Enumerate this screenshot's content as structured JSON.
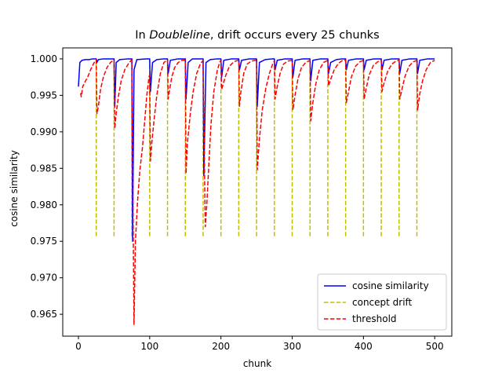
{
  "chart_data": {
    "type": "line",
    "title_prefix": "In ",
    "title_italic": "Doubleline",
    "title_suffix": ", drift occurs every 25 chunks",
    "xlabel": "chunk",
    "ylabel": "cosine similarity",
    "xlim": [
      -22,
      524
    ],
    "ylim": [
      0.962,
      1.0015
    ],
    "xticks": [
      0,
      100,
      200,
      300,
      400,
      500
    ],
    "yticks": [
      0.965,
      0.97,
      0.975,
      0.98,
      0.985,
      0.99,
      0.995,
      1.0
    ],
    "ytick_labels": [
      "0.965",
      "0.970",
      "0.975",
      "0.980",
      "0.985",
      "0.990",
      "0.995",
      "1.000"
    ],
    "grid": false,
    "legend_position": "lower right",
    "legend": [
      {
        "label": "cosine similarity",
        "color": "#0000ff",
        "style": "solid"
      },
      {
        "label": "concept drift",
        "color": "#bfbf00",
        "style": "dashed"
      },
      {
        "label": "threshold",
        "color": "#ff0000",
        "style": "dashed"
      }
    ],
    "drift_points": [
      25,
      50,
      75,
      100,
      125,
      150,
      175,
      200,
      225,
      250,
      275,
      300,
      325,
      350,
      375,
      400,
      425,
      450,
      475
    ],
    "drift_line_range": [
      0.9757,
      1.0
    ],
    "series": [
      {
        "name": "cosine similarity",
        "color": "#0000ff",
        "points": [
          [
            0,
            0.9962
          ],
          [
            2,
            0.9995
          ],
          [
            5,
            0.9998
          ],
          [
            10,
            0.9999
          ],
          [
            15,
            0.9999
          ],
          [
            20,
            1.0
          ],
          [
            25,
            1.0
          ],
          [
            26,
            0.9995
          ],
          [
            28,
            0.9999
          ],
          [
            35,
            1.0
          ],
          [
            45,
            1.0
          ],
          [
            50,
            1.0
          ],
          [
            51,
            0.9935
          ],
          [
            53,
            0.9995
          ],
          [
            58,
            0.9999
          ],
          [
            70,
            1.0
          ],
          [
            75,
            1.0
          ],
          [
            76,
            0.975
          ],
          [
            78,
            0.9985
          ],
          [
            82,
            0.9999
          ],
          [
            95,
            1.0
          ],
          [
            100,
            1.0
          ],
          [
            101,
            0.9955
          ],
          [
            104,
            0.9995
          ],
          [
            110,
            0.9999
          ],
          [
            120,
            1.0
          ],
          [
            125,
            1.0
          ],
          [
            126,
            0.998
          ],
          [
            129,
            0.9998
          ],
          [
            140,
            1.0
          ],
          [
            150,
            1.0
          ],
          [
            151,
            0.9945
          ],
          [
            154,
            0.9995
          ],
          [
            160,
            1.0
          ],
          [
            175,
            1.0
          ],
          [
            176,
            0.984
          ],
          [
            179,
            0.9995
          ],
          [
            185,
            0.9999
          ],
          [
            195,
            1.0
          ],
          [
            200,
            1.0
          ],
          [
            201,
            0.9975
          ],
          [
            204,
            0.9998
          ],
          [
            215,
            1.0
          ],
          [
            225,
            1.0
          ],
          [
            226,
            0.9985
          ],
          [
            229,
            0.9998
          ],
          [
            240,
            1.0
          ],
          [
            250,
            1.0
          ],
          [
            251,
            0.9935
          ],
          [
            254,
            0.9995
          ],
          [
            262,
            0.9999
          ],
          [
            272,
            1.0
          ],
          [
            275,
            1.0
          ],
          [
            276,
            0.9985
          ],
          [
            279,
            0.9998
          ],
          [
            290,
            1.0
          ],
          [
            300,
            1.0
          ],
          [
            301,
            0.9975
          ],
          [
            304,
            0.9998
          ],
          [
            315,
            1.0
          ],
          [
            325,
            1.0
          ],
          [
            326,
            0.997
          ],
          [
            329,
            0.9998
          ],
          [
            340,
            1.0
          ],
          [
            350,
            1.0
          ],
          [
            351,
            0.998
          ],
          [
            354,
            0.9995
          ],
          [
            362,
            0.9999
          ],
          [
            370,
            1.0
          ],
          [
            375,
            1.0
          ],
          [
            376,
            0.9985
          ],
          [
            379,
            0.9998
          ],
          [
            390,
            1.0
          ],
          [
            400,
            1.0
          ],
          [
            401,
            0.9985
          ],
          [
            404,
            0.9998
          ],
          [
            415,
            1.0
          ],
          [
            425,
            1.0
          ],
          [
            426,
            0.9985
          ],
          [
            429,
            0.9998
          ],
          [
            440,
            1.0
          ],
          [
            450,
            1.0
          ],
          [
            451,
            0.998
          ],
          [
            454,
            0.9998
          ],
          [
            465,
            1.0
          ],
          [
            475,
            1.0
          ],
          [
            476,
            0.998
          ],
          [
            479,
            0.9998
          ],
          [
            490,
            1.0
          ],
          [
            500,
            1.0
          ]
        ]
      },
      {
        "name": "threshold",
        "color": "#ff0000",
        "points": [
          [
            3,
            0.9953
          ],
          [
            4,
            0.9948
          ],
          [
            6,
            0.9962
          ],
          [
            9,
            0.9968
          ],
          [
            13,
            0.9975
          ],
          [
            17,
            0.9985
          ],
          [
            21,
            0.9993
          ],
          [
            24,
            0.9998
          ],
          [
            25,
            0.9998
          ],
          [
            26,
            0.9925
          ],
          [
            28,
            0.9935
          ],
          [
            31,
            0.9958
          ],
          [
            35,
            0.9975
          ],
          [
            40,
            0.9988
          ],
          [
            45,
            0.9995
          ],
          [
            49,
            0.9998
          ],
          [
            50,
            0.9998
          ],
          [
            51,
            0.9905
          ],
          [
            53,
            0.9925
          ],
          [
            56,
            0.9948
          ],
          [
            60,
            0.997
          ],
          [
            65,
            0.9985
          ],
          [
            70,
            0.9993
          ],
          [
            74,
            0.9998
          ],
          [
            75,
            0.9998
          ],
          [
            78,
            0.9636
          ],
          [
            80,
            0.975
          ],
          [
            83,
            0.9805
          ],
          [
            86,
            0.9845
          ],
          [
            90,
            0.988
          ],
          [
            93,
            0.9915
          ],
          [
            96,
            0.995
          ],
          [
            99,
            0.9975
          ],
          [
            100,
            0.9978
          ],
          [
            101,
            0.986
          ],
          [
            103,
            0.9885
          ],
          [
            106,
            0.9915
          ],
          [
            110,
            0.995
          ],
          [
            115,
            0.998
          ],
          [
            120,
            0.9995
          ],
          [
            124,
            0.9998
          ],
          [
            125,
            0.9998
          ],
          [
            126,
            0.9945
          ],
          [
            128,
            0.9958
          ],
          [
            131,
            0.9975
          ],
          [
            135,
            0.9988
          ],
          [
            140,
            0.9995
          ],
          [
            145,
            0.9998
          ],
          [
            150,
            0.9998
          ],
          [
            151,
            0.9843
          ],
          [
            153,
            0.9885
          ],
          [
            157,
            0.9925
          ],
          [
            161,
            0.9955
          ],
          [
            166,
            0.998
          ],
          [
            171,
            0.9993
          ],
          [
            175,
            0.9998
          ],
          [
            178,
            0.977
          ],
          [
            180,
            0.9798
          ],
          [
            183,
            0.9855
          ],
          [
            186,
            0.991
          ],
          [
            190,
            0.9955
          ],
          [
            195,
            0.9985
          ],
          [
            199,
            0.9997
          ],
          [
            200,
            0.9997
          ],
          [
            201,
            0.9958
          ],
          [
            203,
            0.9965
          ],
          [
            207,
            0.9978
          ],
          [
            212,
            0.999
          ],
          [
            218,
            0.9996
          ],
          [
            224,
            0.9998
          ],
          [
            225,
            0.9998
          ],
          [
            226,
            0.9935
          ],
          [
            228,
            0.9955
          ],
          [
            232,
            0.998
          ],
          [
            237,
            0.9993
          ],
          [
            243,
            0.9997
          ],
          [
            249,
            0.9998
          ],
          [
            250,
            0.9998
          ],
          [
            251,
            0.9848
          ],
          [
            254,
            0.989
          ],
          [
            258,
            0.993
          ],
          [
            263,
            0.996
          ],
          [
            268,
            0.998
          ],
          [
            273,
            0.9994
          ],
          [
            275,
            0.9997
          ],
          [
            276,
            0.9945
          ],
          [
            279,
            0.9962
          ],
          [
            283,
            0.998
          ],
          [
            288,
            0.9993
          ],
          [
            294,
            0.9997
          ],
          [
            300,
            0.9998
          ],
          [
            301,
            0.993
          ],
          [
            304,
            0.995
          ],
          [
            308,
            0.9972
          ],
          [
            313,
            0.9988
          ],
          [
            319,
            0.9995
          ],
          [
            325,
            0.9998
          ],
          [
            326,
            0.9915
          ],
          [
            329,
            0.994
          ],
          [
            333,
            0.9965
          ],
          [
            338,
            0.9985
          ],
          [
            344,
            0.9995
          ],
          [
            350,
            0.9998
          ],
          [
            351,
            0.9963
          ],
          [
            354,
            0.9972
          ],
          [
            359,
            0.9985
          ],
          [
            365,
            0.9994
          ],
          [
            371,
            0.9998
          ],
          [
            375,
            0.9998
          ],
          [
            376,
            0.994
          ],
          [
            379,
            0.9955
          ],
          [
            383,
            0.9975
          ],
          [
            389,
            0.999
          ],
          [
            395,
            0.9996
          ],
          [
            400,
            0.9998
          ],
          [
            401,
            0.9945
          ],
          [
            404,
            0.996
          ],
          [
            408,
            0.9978
          ],
          [
            414,
            0.9991
          ],
          [
            420,
            0.9996
          ],
          [
            425,
            0.9998
          ],
          [
            426,
            0.9955
          ],
          [
            429,
            0.9967
          ],
          [
            434,
            0.9983
          ],
          [
            440,
            0.9993
          ],
          [
            446,
            0.9997
          ],
          [
            450,
            0.9998
          ],
          [
            451,
            0.9945
          ],
          [
            454,
            0.9958
          ],
          [
            458,
            0.9975
          ],
          [
            464,
            0.999
          ],
          [
            470,
            0.9996
          ],
          [
            475,
            0.9998
          ],
          [
            476,
            0.993
          ],
          [
            479,
            0.9952
          ],
          [
            483,
            0.997
          ],
          [
            488,
            0.9985
          ],
          [
            494,
            0.9995
          ],
          [
            500,
            0.9998
          ]
        ]
      }
    ]
  }
}
